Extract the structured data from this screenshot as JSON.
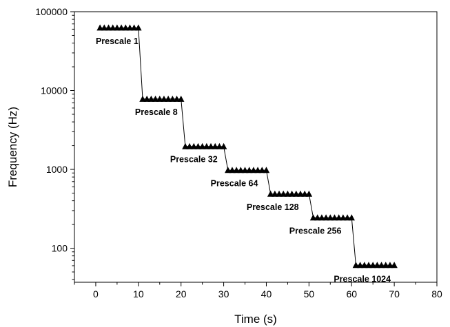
{
  "chart_data": {
    "type": "scatter",
    "xlabel": "Time (s)",
    "ylabel": "Frequency (Hz)",
    "xlim": [
      -5,
      80
    ],
    "ylim": [
      37,
      100000
    ],
    "y_scale": "log",
    "x_ticks": [
      0,
      10,
      20,
      30,
      40,
      50,
      60,
      70,
      80
    ],
    "x_tick_labels": [
      "0",
      "10",
      "20",
      "30",
      "40",
      "50",
      "60",
      "70",
      "80"
    ],
    "y_ticks": [
      100,
      1000,
      10000,
      100000
    ],
    "y_tick_labels": [
      "100",
      "1000",
      "10000",
      "100000"
    ],
    "grid": false,
    "marker": "triangle",
    "marker_color": "#000000",
    "series": [
      {
        "x": [
          1,
          2,
          3,
          4,
          5,
          6,
          7,
          8,
          9,
          10,
          11,
          12,
          13,
          14,
          15,
          16,
          17,
          18,
          19,
          20,
          21,
          22,
          23,
          24,
          25,
          26,
          27,
          28,
          29,
          30,
          31,
          32,
          33,
          34,
          35,
          36,
          37,
          38,
          39,
          40,
          41,
          42,
          43,
          44,
          45,
          46,
          47,
          48,
          49,
          50,
          51,
          52,
          53,
          54,
          55,
          56,
          57,
          58,
          59,
          60,
          61,
          62,
          63,
          64,
          65,
          66,
          67,
          68,
          69,
          70
        ],
        "y": [
          62500,
          62500,
          62500,
          62500,
          62500,
          62500,
          62500,
          62500,
          62500,
          62500,
          7812.5,
          7812.5,
          7812.5,
          7812.5,
          7812.5,
          7812.5,
          7812.5,
          7812.5,
          7812.5,
          7812.5,
          1953,
          1953,
          1953,
          1953,
          1953,
          1953,
          1953,
          1953,
          1953,
          1953,
          976.6,
          976.6,
          976.6,
          976.6,
          976.6,
          976.6,
          976.6,
          976.6,
          976.6,
          976.6,
          488.3,
          488.3,
          488.3,
          488.3,
          488.3,
          488.3,
          488.3,
          488.3,
          488.3,
          488.3,
          244.1,
          244.1,
          244.1,
          244.1,
          244.1,
          244.1,
          244.1,
          244.1,
          244.1,
          244.1,
          61,
          61,
          61,
          61,
          61,
          61,
          61,
          61,
          61,
          61
        ]
      }
    ],
    "annotations": [
      {
        "text": "Prescale 1",
        "x": 5.0,
        "y": 39000
      },
      {
        "text": "Prescale 8",
        "x": 14.2,
        "y": 4900
      },
      {
        "text": "Prescale 32",
        "x": 23.0,
        "y": 1230
      },
      {
        "text": "Prescale 64",
        "x": 32.5,
        "y": 610
      },
      {
        "text": "Prescale 128",
        "x": 41.5,
        "y": 305
      },
      {
        "text": "Prescale 256",
        "x": 51.5,
        "y": 152
      },
      {
        "text": "Prescale 1024",
        "x": 62.5,
        "y": 37.5
      }
    ]
  }
}
